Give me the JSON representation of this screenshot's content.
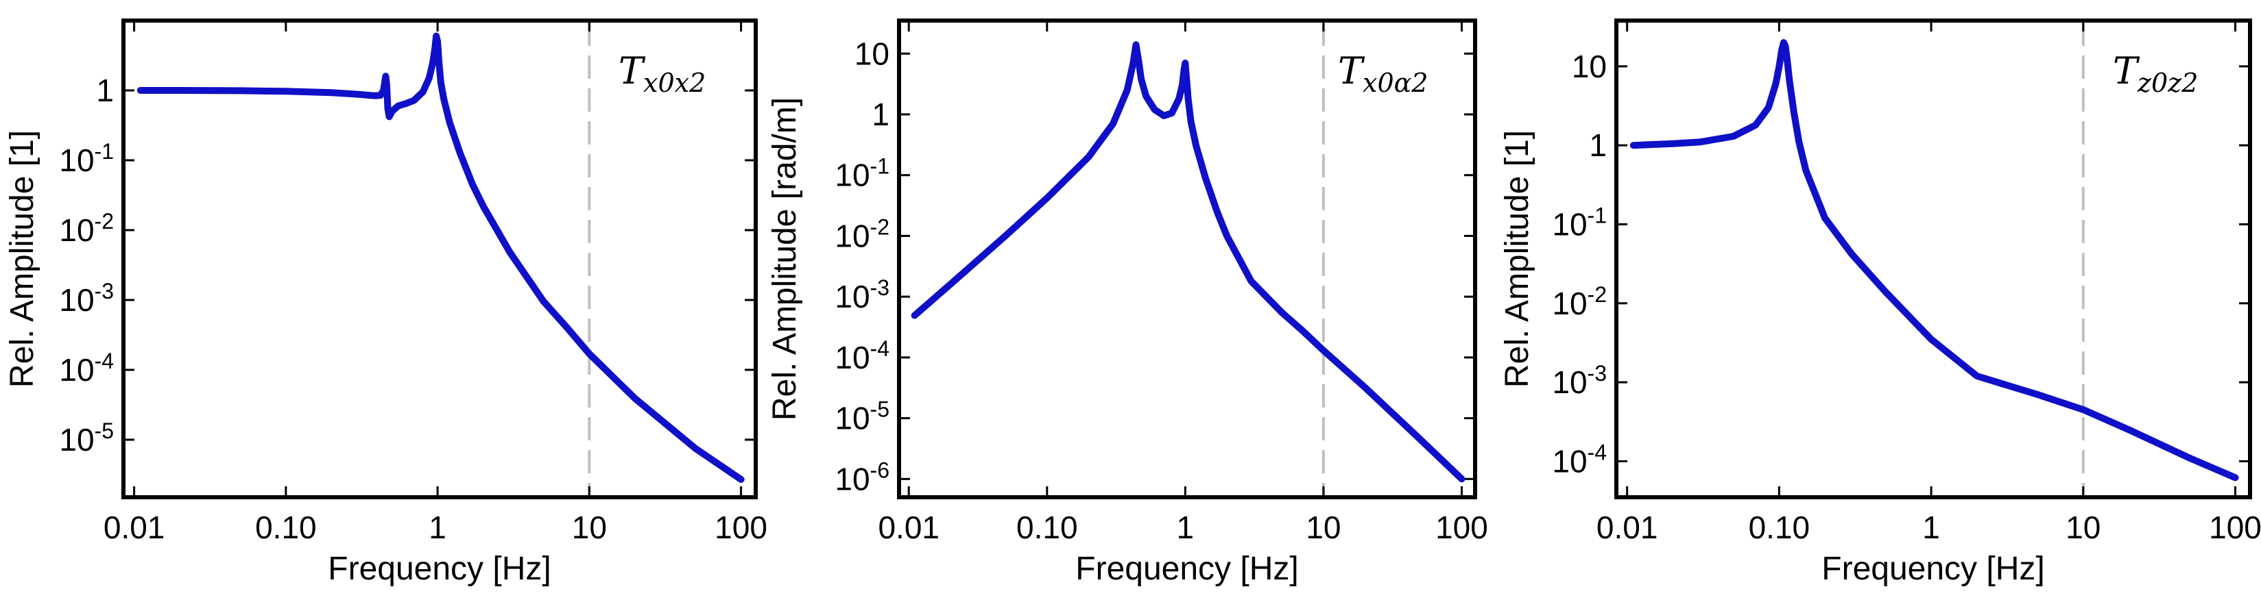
{
  "chart_data": [
    {
      "type": "line",
      "title": "T",
      "title_subscript": "x0x2",
      "xlabel": "Frequency [Hz]",
      "ylabel": "Rel. Amplitude [1]",
      "x_scale": "log",
      "y_scale": "log",
      "xlim": [
        0.0085,
        125
      ],
      "ylim": [
        1.5e-06,
        10
      ],
      "xticks": [
        {
          "value": 0.01,
          "label": "0.01"
        },
        {
          "value": 0.1,
          "label": "0.10"
        },
        {
          "value": 1,
          "label": "1"
        },
        {
          "value": 10,
          "label": "10"
        },
        {
          "value": 100,
          "label": "100"
        }
      ],
      "yticks": [
        {
          "value": 1,
          "base": "1",
          "exp": ""
        },
        {
          "value": 0.1,
          "base": "10",
          "exp": "-1"
        },
        {
          "value": 0.01,
          "base": "10",
          "exp": "-2"
        },
        {
          "value": 0.001,
          "base": "10",
          "exp": "-3"
        },
        {
          "value": 0.0001,
          "base": "10",
          "exp": "-4"
        },
        {
          "value": 1e-05,
          "base": "10",
          "exp": "-5"
        }
      ],
      "reference_line_x": 10,
      "series": [
        {
          "name": "Tx0x2",
          "color": "#1010c8",
          "x": [
            0.011,
            0.02,
            0.05,
            0.1,
            0.2,
            0.3,
            0.38,
            0.42,
            0.44,
            0.455,
            0.462,
            0.47,
            0.48,
            0.5,
            0.55,
            0.62,
            0.7,
            0.8,
            0.88,
            0.93,
            0.96,
            0.98,
            1.0,
            1.02,
            1.05,
            1.1,
            1.2,
            1.4,
            1.7,
            2,
            3,
            5,
            7,
            10,
            20,
            50,
            100
          ],
          "y": [
            1.0,
            1.0,
            0.99,
            0.97,
            0.93,
            0.88,
            0.84,
            0.85,
            1.0,
            1.6,
            1.2,
            0.55,
            0.42,
            0.5,
            0.6,
            0.65,
            0.72,
            0.95,
            1.5,
            2.5,
            4.0,
            6.0,
            5.0,
            2.6,
            1.3,
            0.75,
            0.35,
            0.13,
            0.045,
            0.022,
            0.0048,
            0.00095,
            0.00042,
            0.00017,
            3.9e-05,
            7.5e-06,
            2.7e-06
          ]
        }
      ]
    },
    {
      "type": "line",
      "title": "T",
      "title_subscript": "x0α2",
      "xlabel": "Frequency [Hz]",
      "ylabel": "Rel. Amplitude [rad/m]",
      "x_scale": "log",
      "y_scale": "log",
      "xlim": [
        0.0085,
        125
      ],
      "ylim": [
        5e-07,
        35
      ],
      "xticks": [
        {
          "value": 0.01,
          "label": "0.01"
        },
        {
          "value": 0.1,
          "label": "0.10"
        },
        {
          "value": 1,
          "label": "1"
        },
        {
          "value": 10,
          "label": "10"
        },
        {
          "value": 100,
          "label": "100"
        }
      ],
      "yticks": [
        {
          "value": 10,
          "base": "10",
          "exp": ""
        },
        {
          "value": 1,
          "base": "1",
          "exp": ""
        },
        {
          "value": 0.1,
          "base": "10",
          "exp": "-1"
        },
        {
          "value": 0.01,
          "base": "10",
          "exp": "-2"
        },
        {
          "value": 0.001,
          "base": "10",
          "exp": "-3"
        },
        {
          "value": 0.0001,
          "base": "10",
          "exp": "-4"
        },
        {
          "value": 1e-05,
          "base": "10",
          "exp": "-5"
        },
        {
          "value": 1e-06,
          "base": "10",
          "exp": "-6"
        }
      ],
      "reference_line_x": 10,
      "series": [
        {
          "name": "Tx0α2",
          "color": "#1010c8",
          "x": [
            0.011,
            0.02,
            0.05,
            0.1,
            0.2,
            0.3,
            0.38,
            0.42,
            0.44,
            0.46,
            0.48,
            0.52,
            0.6,
            0.7,
            0.8,
            0.9,
            0.95,
            0.98,
            1.0,
            1.02,
            1.05,
            1.1,
            1.2,
            1.4,
            1.7,
            2,
            3,
            5,
            7,
            10,
            20,
            50,
            100
          ],
          "y": [
            0.00049,
            0.0016,
            0.01,
            0.042,
            0.2,
            0.7,
            2.5,
            7.0,
            14.0,
            7.5,
            3.8,
            2.0,
            1.2,
            0.95,
            1.05,
            1.8,
            3.0,
            5.5,
            7.0,
            4.0,
            1.8,
            0.75,
            0.3,
            0.09,
            0.025,
            0.01,
            0.0018,
            0.00055,
            0.00028,
            0.00013,
            3.2e-05,
            4.5e-06,
            1e-06
          ]
        }
      ]
    },
    {
      "type": "line",
      "title": "T",
      "title_subscript": "z0z2",
      "xlabel": "Frequency [Hz]",
      "ylabel": "Rel. Amplitude [1]",
      "x_scale": "log",
      "y_scale": "log",
      "xlim": [
        0.0085,
        125
      ],
      "ylim": [
        3.5e-05,
        38
      ],
      "xticks": [
        {
          "value": 0.01,
          "label": "0.01"
        },
        {
          "value": 0.1,
          "label": "0.10"
        },
        {
          "value": 1,
          "label": "1"
        },
        {
          "value": 10,
          "label": "10"
        },
        {
          "value": 100,
          "label": "100"
        }
      ],
      "yticks": [
        {
          "value": 10,
          "base": "10",
          "exp": ""
        },
        {
          "value": 1,
          "base": "1",
          "exp": ""
        },
        {
          "value": 0.1,
          "base": "10",
          "exp": "-1"
        },
        {
          "value": 0.01,
          "base": "10",
          "exp": "-2"
        },
        {
          "value": 0.001,
          "base": "10",
          "exp": "-3"
        },
        {
          "value": 0.0001,
          "base": "10",
          "exp": "-4"
        }
      ],
      "reference_line_x": 10,
      "series": [
        {
          "name": "Tz0z2",
          "color": "#1010c8",
          "x": [
            0.011,
            0.02,
            0.03,
            0.05,
            0.07,
            0.085,
            0.095,
            0.1,
            0.104,
            0.107,
            0.11,
            0.113,
            0.117,
            0.125,
            0.135,
            0.15,
            0.2,
            0.3,
            0.5,
            1,
            2,
            5,
            10,
            20,
            50,
            100
          ],
          "y": [
            1.0,
            1.05,
            1.1,
            1.3,
            1.8,
            3.0,
            6.0,
            10.0,
            16.0,
            20.0,
            18.0,
            12.0,
            6.5,
            2.6,
            1.1,
            0.48,
            0.12,
            0.042,
            0.014,
            0.0035,
            0.0012,
            0.0007,
            0.00045,
            0.00025,
            0.00011,
            6.2e-05
          ]
        }
      ]
    }
  ]
}
